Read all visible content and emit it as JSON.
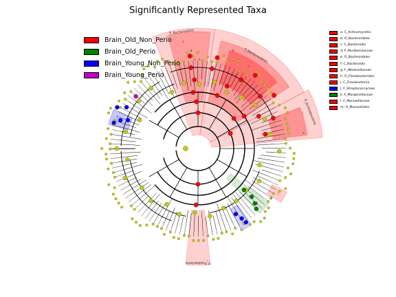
{
  "title": "Significantly Represented Taxa",
  "colors": {
    "Brain_Old_Non_Perio": "#ff0000",
    "Brain_Old_Perio": "#008000",
    "Brain_Young_Non_Perio": "#0000ff",
    "Brain_Young_Perio": "#c000c0",
    "node": "#c8c800"
  },
  "groups": [
    {
      "label": "Brain_Old_Non_Perio",
      "color": "#ff0000"
    },
    {
      "label": "Brain_Old_Perio",
      "color": "#008000"
    },
    {
      "label": "Brain_Young_Non_Perio",
      "color": "#0000ff"
    },
    {
      "label": "Brain_Young_Perio",
      "color": "#c000c0"
    }
  ],
  "taxa": [
    {
      "label": "a: C_Actinomycetia",
      "color": "#ff0000"
    },
    {
      "label": "b: O_Bacteroidales",
      "color": "#ff0000"
    },
    {
      "label": "c: C_Bacteroidia",
      "color": "#ff0000"
    },
    {
      "label": "d: F_Muribaculaceae",
      "color": "#ff0000"
    },
    {
      "label": "e: O_Bacteroidales",
      "color": "#ff0000"
    },
    {
      "label": "f: C_Bacteroidia",
      "color": "#ff0000"
    },
    {
      "label": "g: F_Weeksellaceae",
      "color": "#ff0000"
    },
    {
      "label": "h: O_Flavobacteriales",
      "color": "#ff0000"
    },
    {
      "label": "i: C_Flavobacteriia",
      "color": "#ff0000"
    },
    {
      "label": "j: F_Streptococcaceae",
      "color": "#0000ff"
    },
    {
      "label": "k: F_Morganellaceae",
      "color": "#008000"
    },
    {
      "label": "l: F_Moraxellaceae",
      "color": "#ff0000"
    },
    {
      "label": "m: O_Moraxellales",
      "color": "#ff0000"
    }
  ],
  "clade_labels": [
    {
      "text": "P_Bacteroidota"
    },
    {
      "text": "P_Bacteroidetes"
    },
    {
      "text": "P_Actinobacteria"
    },
    {
      "text": "P_Fusobacteria"
    }
  ],
  "highlight_letters": [
    "a",
    "b",
    "c",
    "d",
    "e",
    "f",
    "g",
    "h",
    "i",
    "j",
    "k",
    "l",
    "m"
  ]
}
